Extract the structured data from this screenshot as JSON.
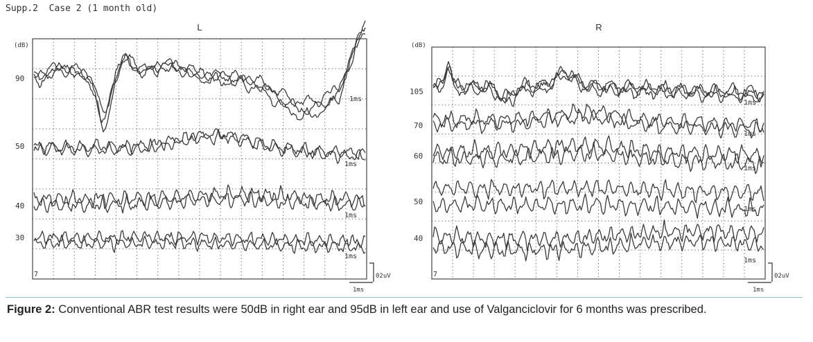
{
  "header": {
    "title": "Supp.2  Case 2 (1 month old)"
  },
  "chart_data": [
    {
      "type": "line",
      "title": "L",
      "y_unit": "(dB)",
      "y_tick_labels": [
        "90",
        "50",
        "40",
        "30"
      ],
      "time_scale_label": "1ms",
      "amplitude_scale_label": "02uV",
      "corner_mark": "7",
      "traces": [
        {
          "level": "90",
          "count": 3,
          "marker": "1ms"
        },
        {
          "level": "50",
          "count": 2,
          "marker": "1ms"
        },
        {
          "level": "40",
          "count": 2,
          "marker": "1ms"
        },
        {
          "level": "30",
          "count": 2,
          "marker": "1ms"
        }
      ]
    },
    {
      "type": "line",
      "title": "R",
      "y_unit": "(dB)",
      "y_tick_labels": [
        "105",
        "70",
        "60",
        "50",
        "40"
      ],
      "time_scale_label": "1ms",
      "amplitude_scale_label": "02uV",
      "corner_mark": "7",
      "traces": [
        {
          "level": "105",
          "count": 3,
          "marker": "1ms"
        },
        {
          "level": "70",
          "count": 2,
          "marker": "1ms"
        },
        {
          "level": "60",
          "count": 2,
          "marker": "1ms"
        },
        {
          "level": "50",
          "count": 2,
          "marker": "1ms"
        },
        {
          "level": "40",
          "count": 2,
          "marker": "1ms"
        }
      ]
    }
  ],
  "caption": {
    "label": "Figure 2:",
    "text": "Conventional ABR test results were 50dB in right ear and 95dB in left ear and use of Valganciclovir for 6 months was prescribed."
  },
  "colors": {
    "trace": "#3a3a3a",
    "grid": "#555555",
    "rule": "#9ab7c9"
  }
}
